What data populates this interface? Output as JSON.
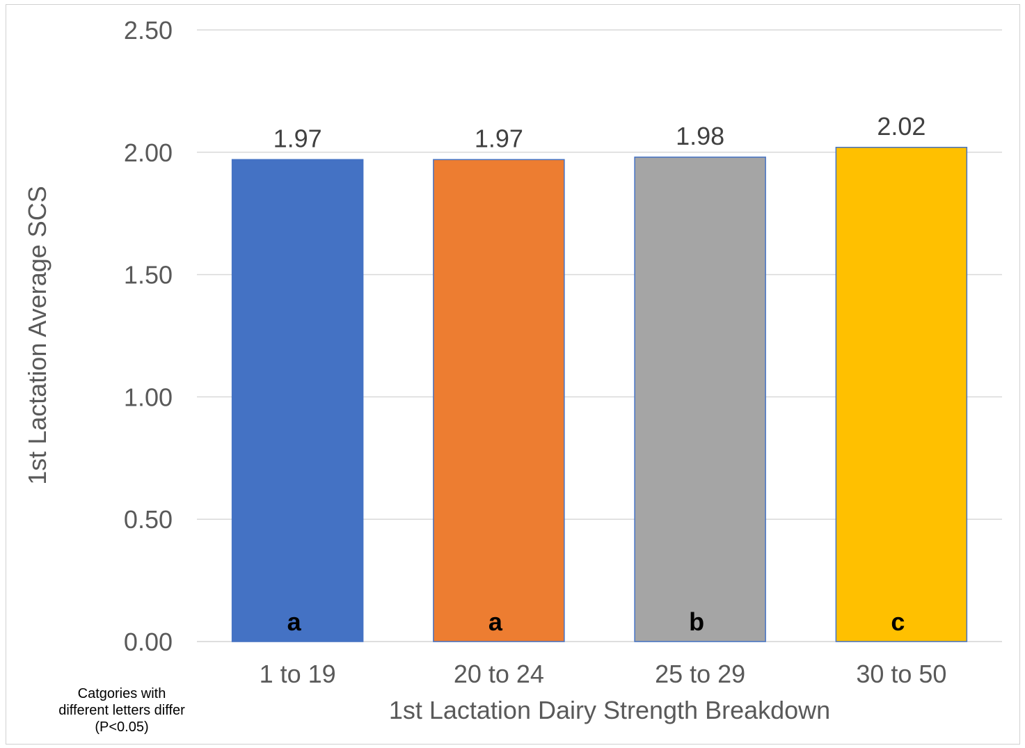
{
  "chart_data": {
    "type": "bar",
    "categories": [
      "1 to 19",
      "20 to 24",
      "25 to 29",
      "30 to 50"
    ],
    "values": [
      1.97,
      1.97,
      1.98,
      2.02
    ],
    "value_labels": [
      "1.97",
      "1.97",
      "1.98",
      "2.02"
    ],
    "significance_letters": [
      "a",
      "a",
      "b",
      "c"
    ],
    "colors": [
      "#4472C4",
      "#ED7D31",
      "#A5A5A5",
      "#FFC000"
    ],
    "bar_border_color": "#4472C4",
    "ylim": [
      0,
      2.5
    ],
    "yticks": [
      "0.00",
      "0.50",
      "1.00",
      "1.50",
      "2.00",
      "2.50"
    ],
    "ytick_values": [
      0,
      0.5,
      1.0,
      1.5,
      2.0,
      2.5
    ],
    "xlabel": "1st Lactation Dairy Strength Breakdown",
    "ylabel": "1st Lactation Average SCS",
    "grid": true,
    "legend": "none"
  },
  "note": {
    "line1": "Catgories with",
    "line2": "different letters differ",
    "line3": "(P<0.05)"
  }
}
